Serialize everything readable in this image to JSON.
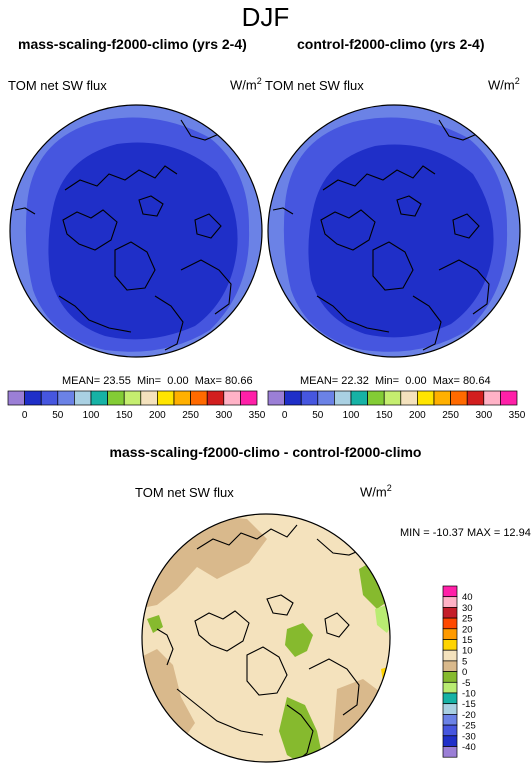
{
  "figure": {
    "season": "DJF"
  },
  "panel_left": {
    "title": "mass-scaling-f2000-climo (yrs 2-4)",
    "variable": "TOM net SW flux",
    "units": "W/m",
    "units_sup": "2",
    "mean_label": "MEAN=",
    "mean": "23.55",
    "min_label": "Min=",
    "min": "0.00",
    "max_label": "Max=",
    "max": "80.66"
  },
  "panel_right": {
    "title": "control-f2000-climo (yrs 2-4)",
    "variable": "TOM net SW flux",
    "units": "W/m",
    "units_sup": "2",
    "mean_label": "MEAN=",
    "mean": "22.32",
    "min_label": "Min=",
    "min": "0.00",
    "max_label": "Max=",
    "max": "80.64"
  },
  "colorbar_top": {
    "colors": [
      "#9b7fd6",
      "#1f2fc8",
      "#4656df",
      "#6b82e6",
      "#a9d0e2",
      "#17b2a5",
      "#83cc35",
      "#c5ee6f",
      "#f4e2bd",
      "#ffe500",
      "#ffb000",
      "#ff6a00",
      "#d21e1e",
      "#ffb2c6",
      "#ff20a8"
    ],
    "labels": [
      "0",
      "50",
      "100",
      "150",
      "200",
      "250",
      "300",
      "350"
    ]
  },
  "diff_panel": {
    "title": "mass-scaling-f2000-climo - control-f2000-climo",
    "variable": "TOM net SW flux",
    "units": "W/m",
    "units_sup": "2",
    "minmax": "MIN = -10.37  MAX =  12.94"
  },
  "colorbar_diff": {
    "colors": [
      "#ff20a8",
      "#ffb2c6",
      "#c41e2a",
      "#ff4800",
      "#ff9a00",
      "#ffd400",
      "#f4e2bd",
      "#d9b98c",
      "#86ba2e",
      "#b9ec72",
      "#17b2a5",
      "#a9d0e2",
      "#6b82e6",
      "#4656df",
      "#1f2fc8",
      "#9b7fd6"
    ],
    "labels": [
      "40",
      "30",
      "25",
      "20",
      "15",
      "10",
      "5",
      "0",
      "-5",
      "-10",
      "-15",
      "-20",
      "-25",
      "-30",
      "-40"
    ]
  }
}
